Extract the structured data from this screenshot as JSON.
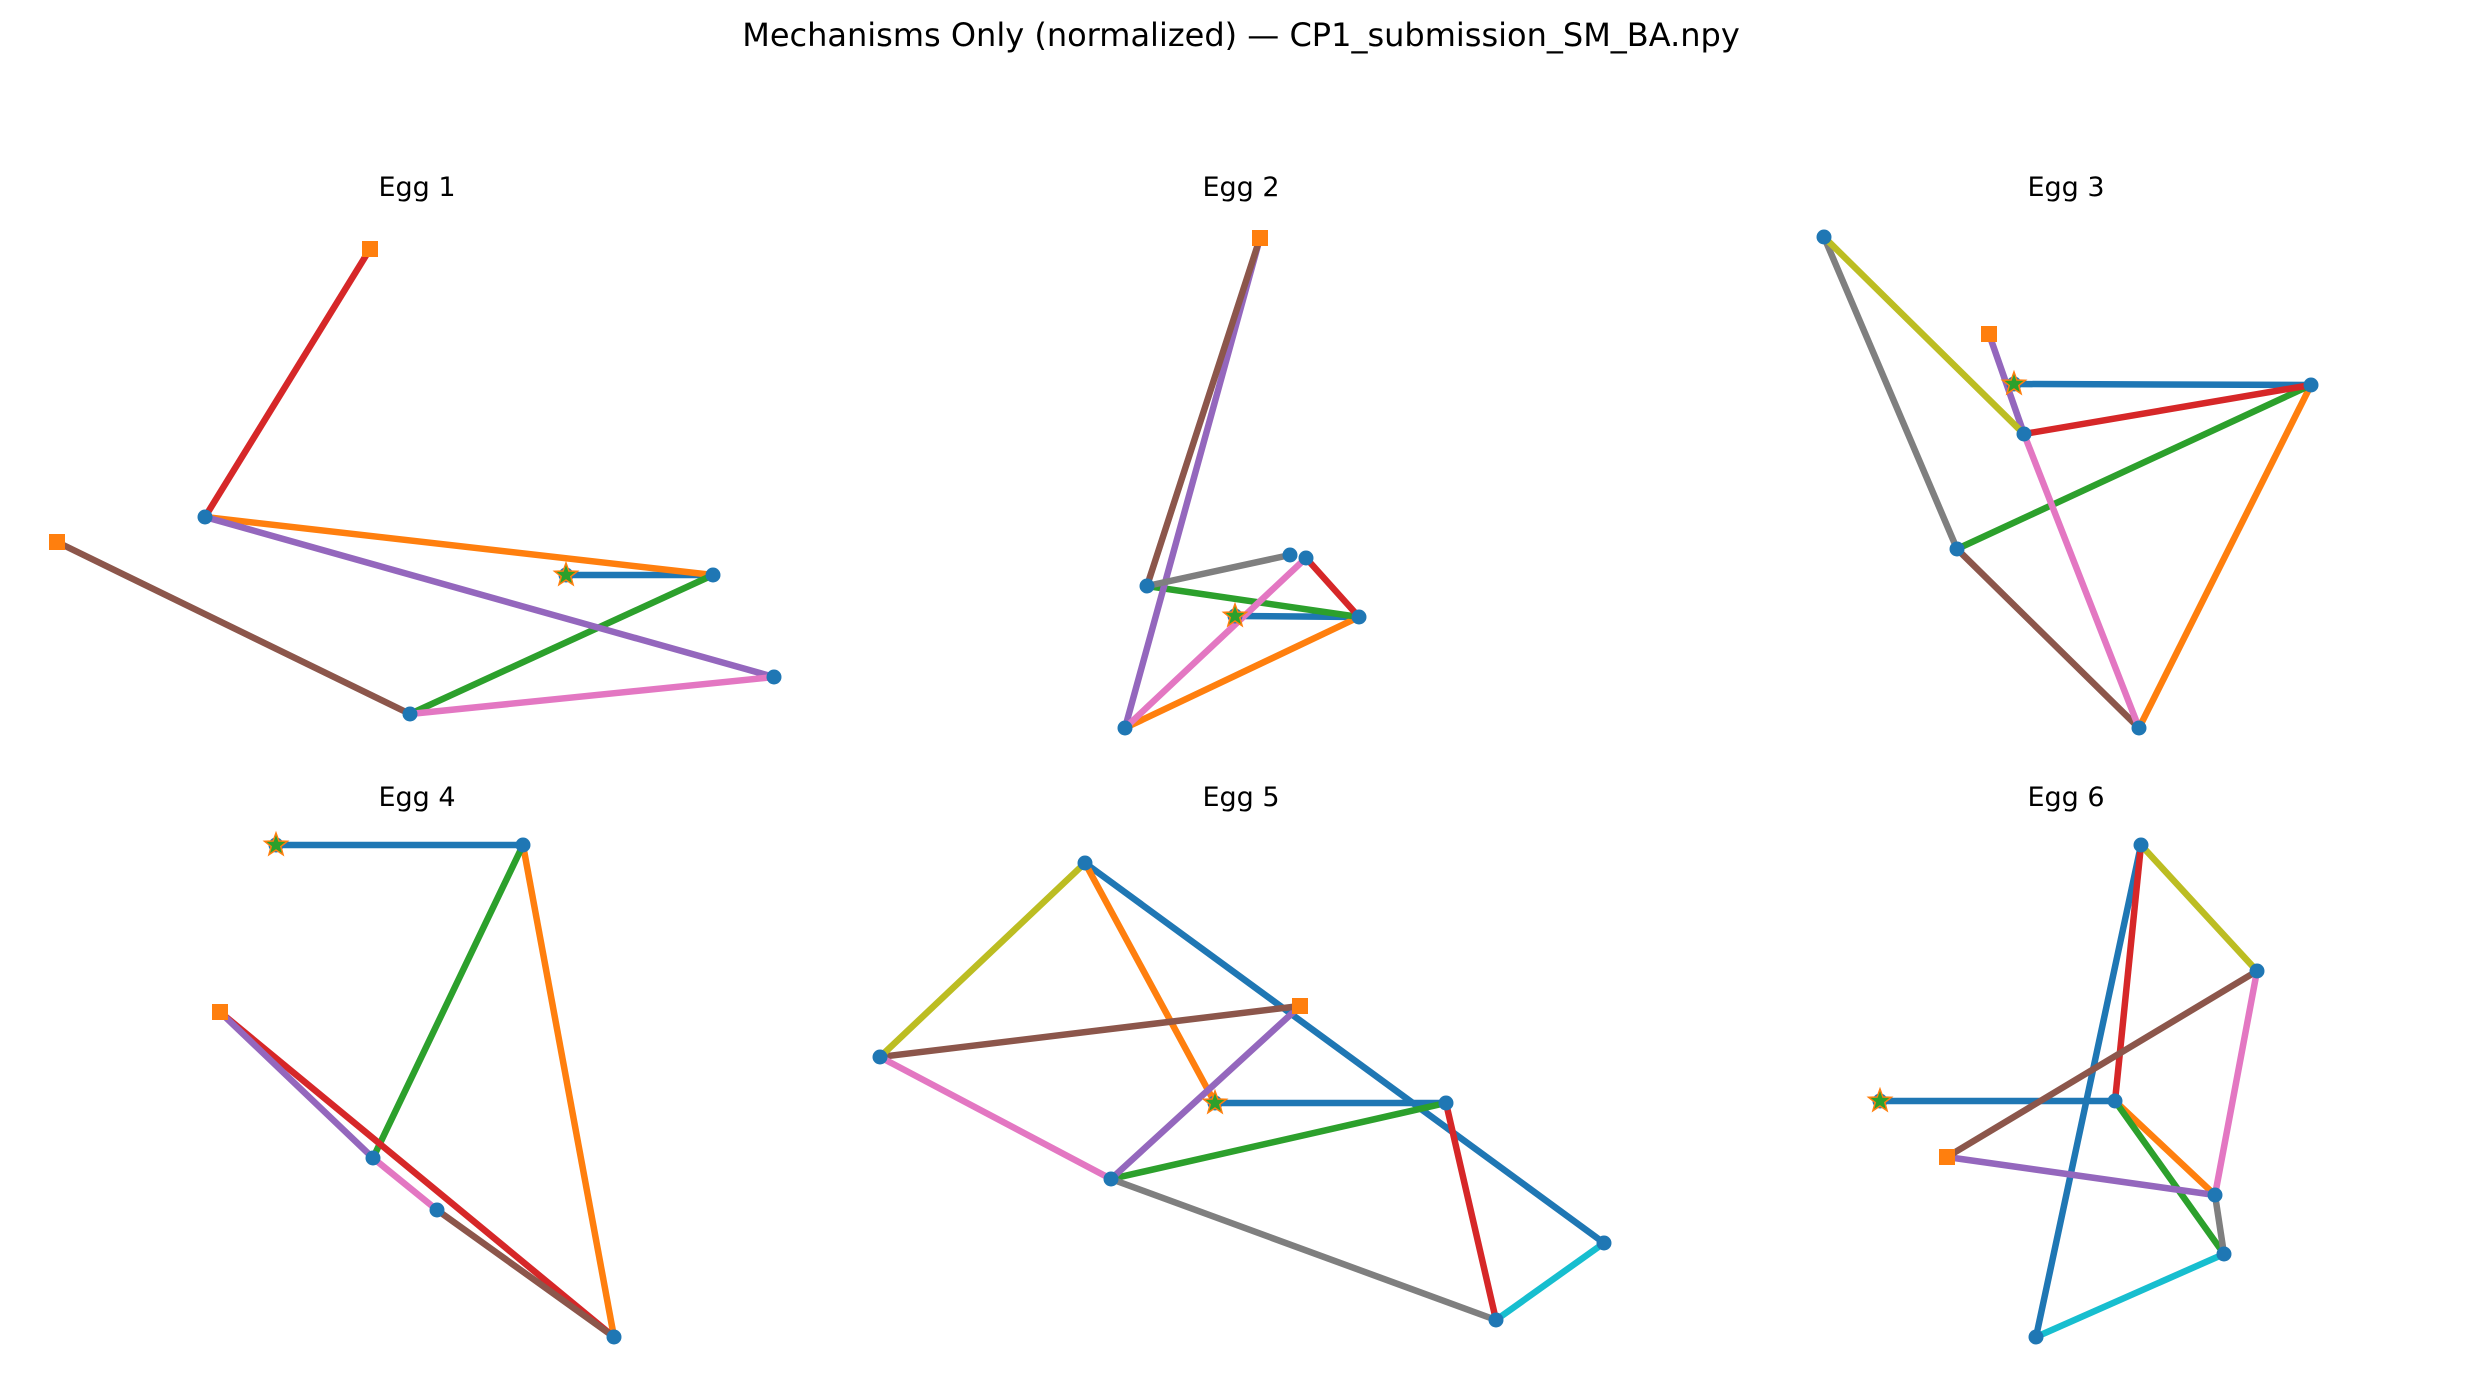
{
  "figure": {
    "title": "Mechanisms Only (normalized) — CP1_submission_SM_BA.npy"
  },
  "style": {
    "joint_color": "#1f77b4",
    "fixed_color": "#ff7f0e",
    "motor_color": "#2ca02c"
  },
  "panels": [
    {
      "title": "Egg 1",
      "joints": [
        [
          57,
          542
        ],
        [
          370,
          249
        ],
        [
          205,
          517
        ],
        [
          713,
          575
        ],
        [
          774,
          677
        ],
        [
          410,
          714
        ],
        [
          566,
          575
        ]
      ],
      "fixed": [
        [
          57,
          542
        ],
        [
          370,
          249
        ]
      ],
      "motor": [
        566,
        575
      ],
      "links": [
        {
          "from": 6,
          "to": 3,
          "color": "#1f77b4"
        },
        {
          "from": 2,
          "to": 3,
          "color": "#ff7f0e"
        },
        {
          "from": 5,
          "to": 3,
          "color": "#2ca02c"
        },
        {
          "from": 1,
          "to": 2,
          "color": "#d62728"
        },
        {
          "from": 2,
          "to": 4,
          "color": "#9467bd"
        },
        {
          "from": 0,
          "to": 5,
          "color": "#8c564b"
        },
        {
          "from": 5,
          "to": 4,
          "color": "#e377c2"
        }
      ]
    },
    {
      "title": "Egg 2",
      "joints": [
        [
          1260,
          238
        ],
        [
          1235,
          616
        ],
        [
          1359,
          617
        ],
        [
          1147,
          586
        ],
        [
          1125,
          728
        ],
        [
          1290,
          555
        ],
        [
          1306,
          558
        ]
      ],
      "fixed": [
        [
          1260,
          238
        ]
      ],
      "motor": [
        1235,
        616
      ],
      "links": [
        {
          "from": 1,
          "to": 2,
          "color": "#1f77b4"
        },
        {
          "from": 4,
          "to": 2,
          "color": "#ff7f0e"
        },
        {
          "from": 3,
          "to": 2,
          "color": "#2ca02c"
        },
        {
          "from": 6,
          "to": 2,
          "color": "#d62728"
        },
        {
          "from": 0,
          "to": 4,
          "color": "#9467bd"
        },
        {
          "from": 0,
          "to": 3,
          "color": "#8c564b"
        },
        {
          "from": 4,
          "to": 6,
          "color": "#e377c2"
        },
        {
          "from": 3,
          "to": 5,
          "color": "#7f7f7f"
        }
      ]
    },
    {
      "title": "Egg 3",
      "joints": [
        [
          1989,
          334
        ],
        [
          2014,
          384
        ],
        [
          2311,
          385
        ],
        [
          2024,
          434
        ],
        [
          1957,
          549
        ],
        [
          2139,
          728
        ],
        [
          1824,
          237
        ]
      ],
      "fixed": [
        [
          1989,
          334
        ]
      ],
      "motor": [
        2014,
        384
      ],
      "links": [
        {
          "from": 1,
          "to": 2,
          "color": "#1f77b4"
        },
        {
          "from": 5,
          "to": 2,
          "color": "#ff7f0e"
        },
        {
          "from": 4,
          "to": 2,
          "color": "#2ca02c"
        },
        {
          "from": 3,
          "to": 2,
          "color": "#d62728"
        },
        {
          "from": 0,
          "to": 3,
          "color": "#9467bd"
        },
        {
          "from": 4,
          "to": 5,
          "color": "#8c564b"
        },
        {
          "from": 3,
          "to": 5,
          "color": "#e377c2"
        },
        {
          "from": 6,
          "to": 4,
          "color": "#7f7f7f"
        },
        {
          "from": 6,
          "to": 3,
          "color": "#bcbd22"
        }
      ]
    },
    {
      "title": "Egg 4",
      "joints": [
        [
          220,
          1012
        ],
        [
          276,
          845
        ],
        [
          523,
          845
        ],
        [
          614,
          1337
        ],
        [
          373,
          1158
        ],
        [
          437,
          1210
        ]
      ],
      "fixed": [
        [
          220,
          1012
        ]
      ],
      "motor": [
        276,
        845
      ],
      "links": [
        {
          "from": 1,
          "to": 2,
          "color": "#1f77b4"
        },
        {
          "from": 2,
          "to": 3,
          "color": "#ff7f0e"
        },
        {
          "from": 4,
          "to": 2,
          "color": "#2ca02c"
        },
        {
          "from": 0,
          "to": 3,
          "color": "#d62728"
        },
        {
          "from": 0,
          "to": 4,
          "color": "#9467bd"
        },
        {
          "from": 5,
          "to": 3,
          "color": "#8c564b"
        },
        {
          "from": 4,
          "to": 5,
          "color": "#e377c2"
        }
      ]
    },
    {
      "title": "Egg 5",
      "joints": [
        [
          1300,
          1006
        ],
        [
          1215,
          1103
        ],
        [
          1446,
          1103
        ],
        [
          1085,
          863
        ],
        [
          1604,
          1243
        ],
        [
          1496,
          1320
        ],
        [
          880,
          1057
        ],
        [
          1111,
          1179
        ]
      ],
      "fixed": [
        [
          1300,
          1006
        ]
      ],
      "motor": [
        1215,
        1103
      ],
      "links": [
        {
          "from": 1,
          "to": 2,
          "color": "#1f77b4"
        },
        {
          "from": 3,
          "to": 4,
          "color": "#1f77b4"
        },
        {
          "from": 3,
          "to": 1,
          "color": "#ff7f0e"
        },
        {
          "from": 7,
          "to": 2,
          "color": "#2ca02c"
        },
        {
          "from": 2,
          "to": 5,
          "color": "#d62728"
        },
        {
          "from": 7,
          "to": 0,
          "color": "#9467bd"
        },
        {
          "from": 6,
          "to": 0,
          "color": "#8c564b"
        },
        {
          "from": 6,
          "to": 7,
          "color": "#e377c2"
        },
        {
          "from": 7,
          "to": 5,
          "color": "#7f7f7f"
        },
        {
          "from": 6,
          "to": 3,
          "color": "#bcbd22"
        },
        {
          "from": 5,
          "to": 4,
          "color": "#17becf"
        }
      ]
    },
    {
      "title": "Egg 6",
      "joints": [
        [
          1947,
          1157
        ],
        [
          1880,
          1101
        ],
        [
          2115,
          1101
        ],
        [
          2141,
          845
        ],
        [
          2257,
          971
        ],
        [
          2215,
          1195
        ],
        [
          2224,
          1254
        ],
        [
          2036,
          1337
        ]
      ],
      "fixed": [
        [
          1947,
          1157
        ]
      ],
      "motor": [
        1880,
        1101
      ],
      "links": [
        {
          "from": 1,
          "to": 2,
          "color": "#1f77b4"
        },
        {
          "from": 3,
          "to": 7,
          "color": "#1f77b4"
        },
        {
          "from": 2,
          "to": 5,
          "color": "#ff7f0e"
        },
        {
          "from": 2,
          "to": 6,
          "color": "#2ca02c"
        },
        {
          "from": 2,
          "to": 3,
          "color": "#d62728"
        },
        {
          "from": 0,
          "to": 5,
          "color": "#9467bd"
        },
        {
          "from": 0,
          "to": 4,
          "color": "#8c564b"
        },
        {
          "from": 4,
          "to": 5,
          "color": "#e377c2"
        },
        {
          "from": 5,
          "to": 6,
          "color": "#7f7f7f"
        },
        {
          "from": 3,
          "to": 4,
          "color": "#bcbd22"
        },
        {
          "from": 6,
          "to": 7,
          "color": "#17becf"
        }
      ]
    }
  ]
}
